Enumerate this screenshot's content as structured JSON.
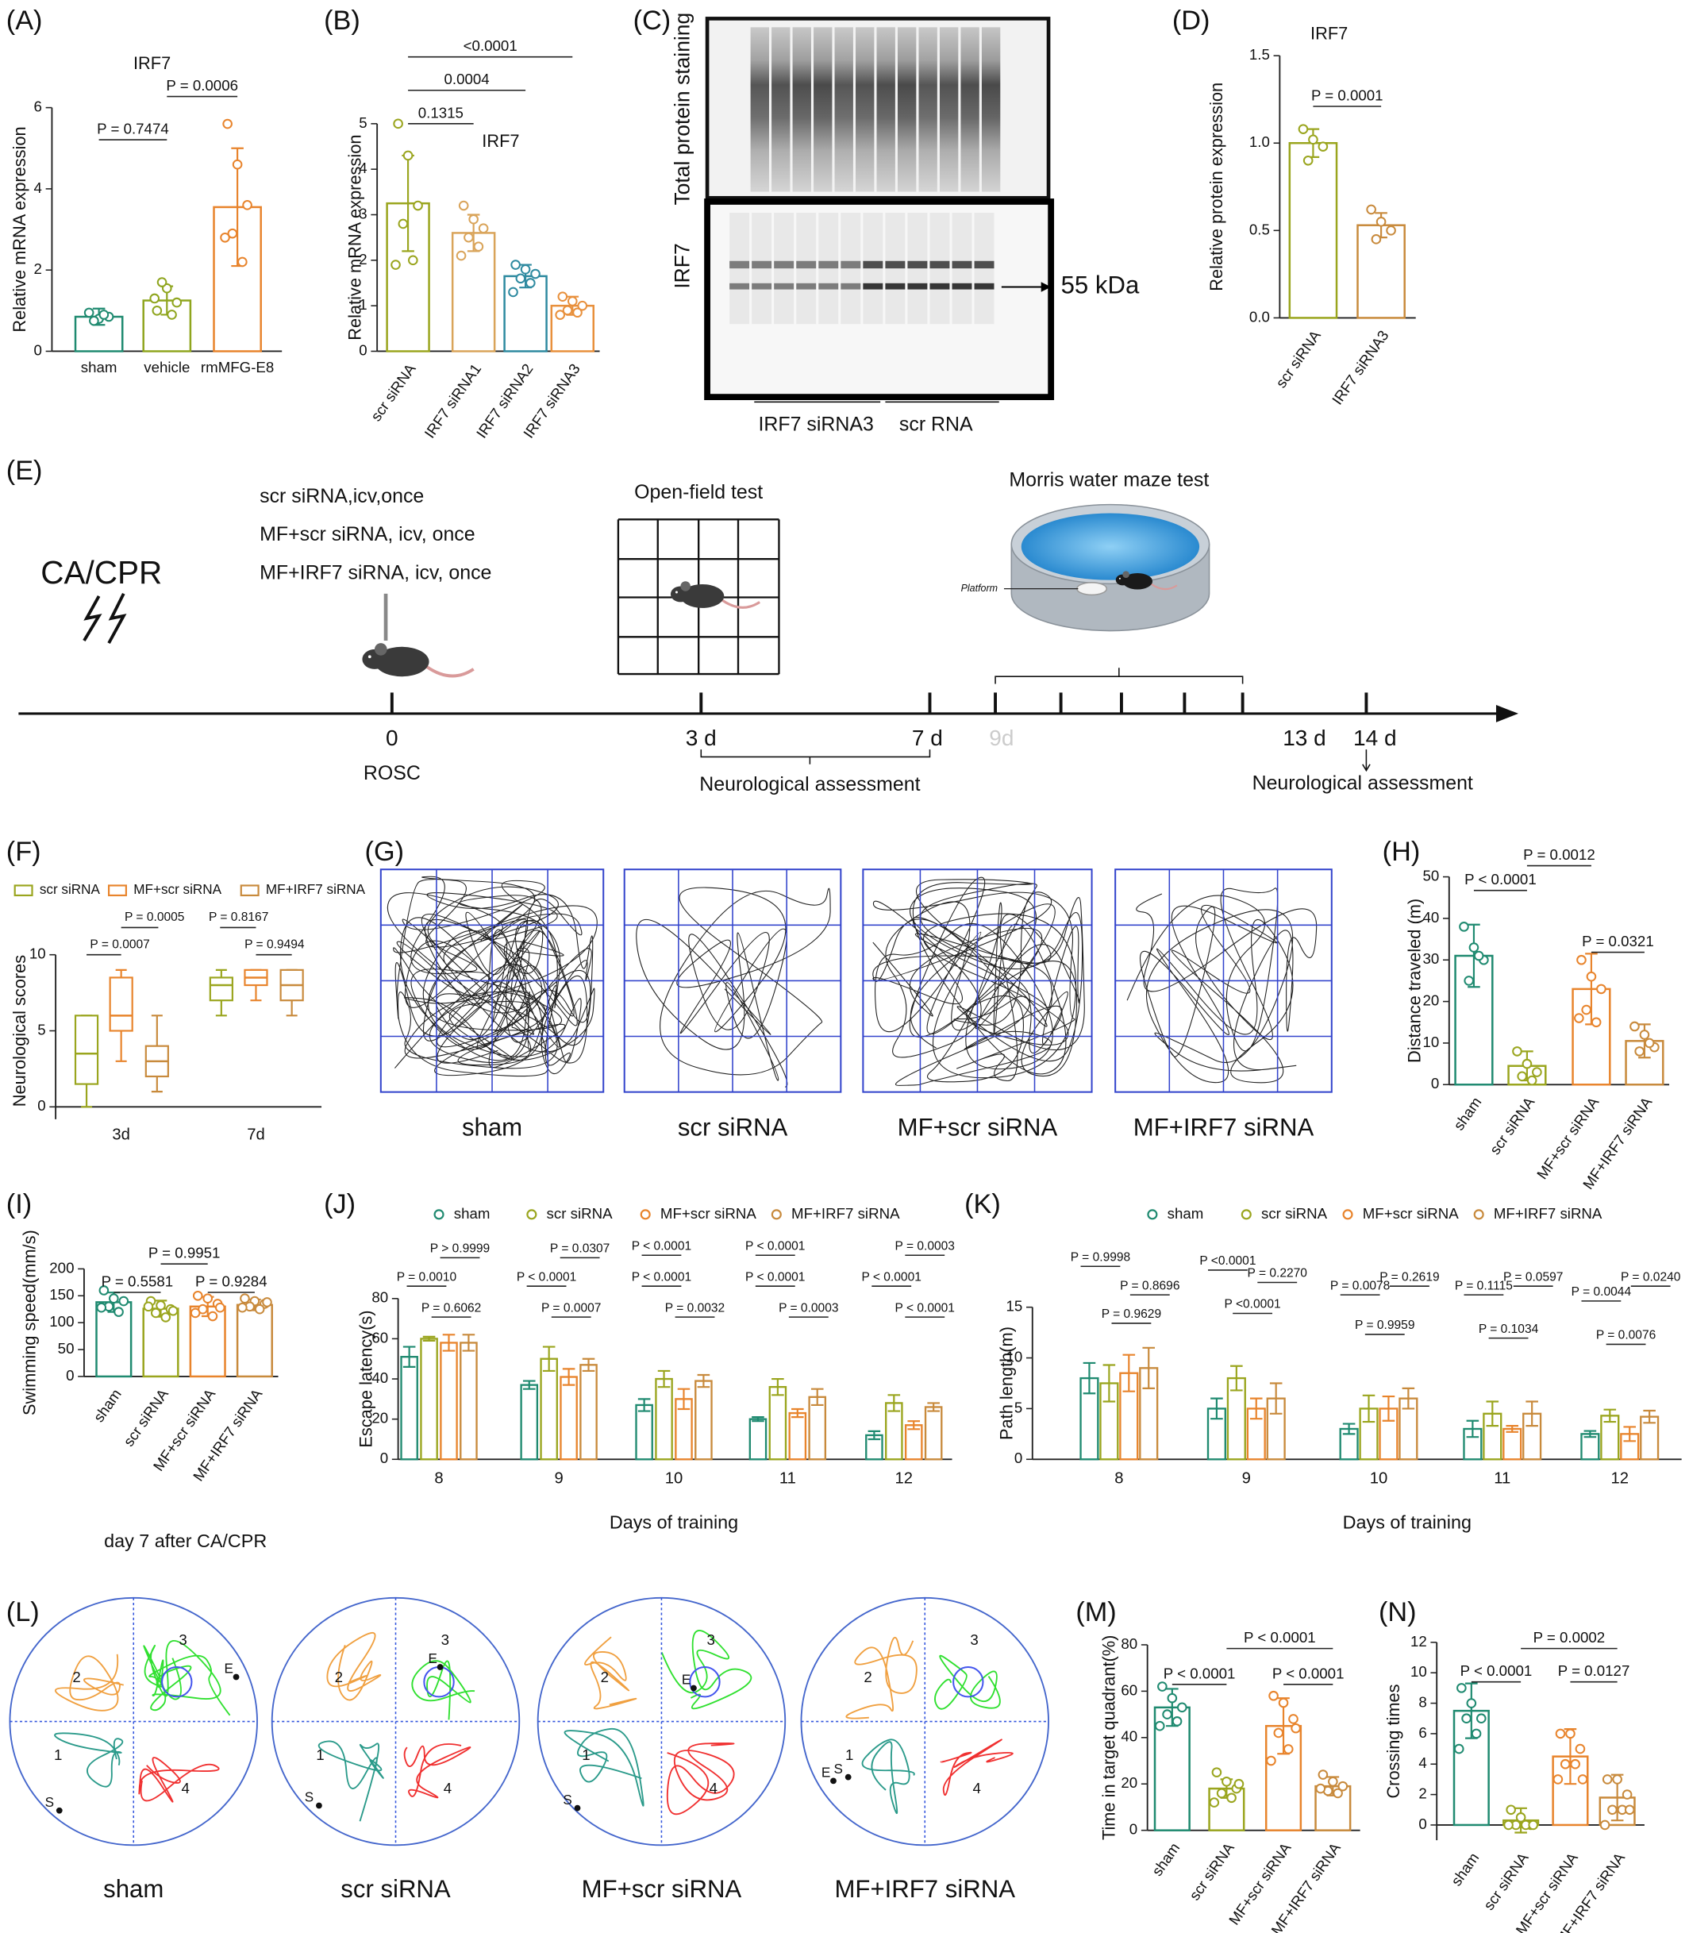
{
  "panels": [
    "(A)",
    "(B)",
    "(C)",
    "(D)",
    "(E)",
    "(F)",
    "(G)",
    "(H)",
    "(I)",
    "(J)",
    "(K)",
    "(L)",
    "(M)",
    "(N)"
  ],
  "chart_data": [
    {
      "type": "bar",
      "title": "IRF7",
      "ylabel": "Relative mRNA expression",
      "categories": [
        "sham",
        "vehicle",
        "rmMFG-E8"
      ],
      "values": [
        0.85,
        1.25,
        3.55
      ],
      "errors": [
        0.2,
        0.35,
        1.45
      ],
      "points": [
        [
          0.95,
          0.8,
          0.85,
          0.75,
          0.9
        ],
        [
          1.0,
          1.55,
          1.2,
          1.7,
          0.9,
          1.3
        ],
        [
          5.6,
          4.6,
          3.6,
          2.9,
          2.2,
          2.8
        ]
      ],
      "colors": [
        "#1f8a70",
        "#8fa51e",
        "#e8842c"
      ],
      "ylim": [
        0,
        6
      ],
      "yticks": [
        0,
        2,
        4,
        6
      ],
      "comparisons": [
        "P = 0.7474",
        "P = 0.0006"
      ]
    },
    {
      "type": "bar",
      "title": "IRF7",
      "ylabel": "Relative mRNA expression",
      "categories": [
        "scr siRNA",
        "IRF7 siRNA1",
        "IRF7 siRNA2",
        "IRF7 siRNA3"
      ],
      "values": [
        3.25,
        2.6,
        1.65,
        1.0
      ],
      "errors": [
        1.05,
        0.4,
        0.25,
        0.2
      ],
      "points": [
        [
          5.0,
          4.3,
          3.2,
          2.8,
          2.0,
          1.9
        ],
        [
          3.2,
          2.9,
          2.7,
          2.5,
          2.3,
          2.1
        ],
        [
          1.9,
          1.8,
          1.7,
          1.6,
          1.5,
          1.3
        ],
        [
          1.2,
          1.1,
          1.0,
          0.9,
          0.85,
          0.8
        ]
      ],
      "colors": [
        "#9aa51e",
        "#d9a45a",
        "#2e8aa0",
        "#e8903c"
      ],
      "ylim": [
        0,
        5
      ],
      "yticks": [
        0,
        1,
        2,
        3,
        4,
        5
      ],
      "comparisons": [
        "0.1315",
        "0.0004",
        "<0.0001"
      ]
    },
    {
      "type": "bar",
      "title": "IRF7",
      "ylabel": "Relative protein expression",
      "categories": [
        "scr siRNA",
        "IRF7 siRNA3"
      ],
      "values": [
        1.0,
        0.53
      ],
      "errors": [
        0.08,
        0.07
      ],
      "points": [
        [
          1.08,
          1.02,
          0.98,
          0.9
        ],
        [
          0.62,
          0.55,
          0.5,
          0.45
        ]
      ],
      "colors": [
        "#9aa51e",
        "#c88a3c"
      ],
      "ylim": [
        0,
        1.5
      ],
      "yticks": [
        {
          "value": 0,
          "label": "0.0"
        },
        {
          "value": 0.5,
          "label": "0.5"
        },
        {
          "value": 1,
          "label": "1.0"
        },
        {
          "value": 1.5,
          "label": "1.5"
        }
      ],
      "comparisons": [
        "P = 0.0001"
      ]
    },
    {
      "type": "box",
      "ylabel": "Neurological scores",
      "categories": [
        "3d",
        "7d"
      ],
      "series": [
        {
          "name": "scr siRNA",
          "color": "#9aa51e",
          "min": [
            0,
            6
          ],
          "q1": [
            1.5,
            7
          ],
          "median": [
            3.5,
            8
          ],
          "q3": [
            6,
            8.5
          ],
          "max": [
            6,
            9
          ]
        },
        {
          "name": "MF+scr siRNA",
          "color": "#e8842c",
          "min": [
            3,
            7
          ],
          "q1": [
            5,
            8
          ],
          "median": [
            6,
            8.5
          ],
          "q3": [
            8.5,
            9
          ],
          "max": [
            9,
            9
          ]
        },
        {
          "name": "MF+IRF7 siRNA",
          "color": "#c88a3c",
          "min": [
            1,
            6
          ],
          "q1": [
            2,
            7
          ],
          "median": [
            3,
            8
          ],
          "q3": [
            4,
            9
          ],
          "max": [
            6,
            9
          ]
        }
      ],
      "ylim": [
        0,
        10
      ],
      "yticks": [
        0,
        5,
        10
      ],
      "comparisons": [
        "P = 0.0007",
        "P = 0.0005",
        "P = 0.8167",
        "P = 0.9494"
      ]
    },
    {
      "type": "bar",
      "ylabel": "Distance traveled (m)",
      "categories": [
        "sham",
        "scr siRNA",
        "MF+scr siRNA",
        "MF+IRF7 siRNA"
      ],
      "values": [
        31,
        4.5,
        23,
        10.5
      ],
      "errors": [
        7.5,
        3.5,
        8.5,
        4
      ],
      "points": [
        [
          38,
          33,
          30,
          25,
          31
        ],
        [
          8,
          5,
          3,
          2,
          1
        ],
        [
          30,
          26,
          23,
          18,
          15,
          16
        ],
        [
          14,
          12,
          9,
          8,
          10
        ]
      ],
      "colors": [
        "#1f8a70",
        "#9aa51e",
        "#e8842c",
        "#c88a3c"
      ],
      "ylim": [
        0,
        50
      ],
      "yticks": [
        0,
        10,
        20,
        30,
        40,
        50
      ],
      "comparisons": [
        "P < 0.0001",
        "P = 0.0012",
        "P = 0.0321"
      ]
    },
    {
      "type": "bar",
      "ylabel": "Swimming speed(mm/s)",
      "xlabel": "day 7 after CA/CPR",
      "categories": [
        "sham",
        "scr siRNA",
        "MF+scr siRNA",
        "MF+IRF7 siRNA"
      ],
      "values": [
        138,
        126,
        130,
        133
      ],
      "errors": [
        18,
        15,
        18,
        10
      ],
      "points": [
        [
          160,
          145,
          140,
          130,
          120,
          128
        ],
        [
          140,
          132,
          125,
          118,
          110,
          130,
          122
        ],
        [
          150,
          145,
          135,
          125,
          112,
          118,
          128
        ],
        [
          145,
          140,
          135,
          130,
          125,
          128,
          138
        ]
      ],
      "colors": [
        "#1f8a70",
        "#9aa51e",
        "#e8842c",
        "#c88a3c"
      ],
      "ylim": [
        0,
        200
      ],
      "yticks": [
        0,
        50,
        100,
        150,
        200
      ],
      "comparisons": [
        "P = 0.5581",
        "P = 0.9951",
        "P = 0.9284"
      ]
    },
    {
      "type": "grouped_bar",
      "ylabel": "Escape latency(s)",
      "xlabel": "Days of training",
      "categories": [
        "8",
        "9",
        "10",
        "11",
        "12"
      ],
      "series": [
        {
          "name": "sham",
          "color": "#1f8a70",
          "values": [
            51,
            37,
            27,
            20,
            12
          ],
          "errors": [
            5,
            2,
            3,
            1,
            2
          ]
        },
        {
          "name": "scr siRNA",
          "color": "#9aa51e",
          "values": [
            60,
            50,
            40,
            36,
            28
          ],
          "errors": [
            1,
            6,
            4,
            4,
            4
          ]
        },
        {
          "name": "MF+scr siRNA",
          "color": "#e8842c",
          "values": [
            58,
            41,
            30,
            23,
            17
          ],
          "errors": [
            4,
            4,
            5,
            2,
            2
          ]
        },
        {
          "name": "MF+IRF7 siRNA",
          "color": "#c88a3c",
          "values": [
            58,
            47,
            39,
            31,
            26
          ],
          "errors": [
            4,
            3,
            3,
            4,
            2
          ]
        }
      ],
      "ylim": [
        0,
        80
      ],
      "yticks": [
        0,
        20,
        40,
        60,
        80
      ],
      "comparisons": [
        [
          "P = 0.0010",
          "P = 0.6062",
          "P > 0.9999"
        ],
        [
          "P < 0.0001",
          "P = 0.0007",
          "P = 0.0307"
        ],
        [
          "P < 0.0001",
          "P < 0.0001",
          "P = 0.0032"
        ],
        [
          "P < 0.0001",
          "P < 0.0001",
          "P = 0.0003"
        ],
        [
          "P < 0.0001",
          "P < 0.0001",
          "P = 0.0003"
        ]
      ]
    },
    {
      "type": "grouped_bar",
      "ylabel": "Path length(m)",
      "xlabel": "Days of training",
      "categories": [
        "8",
        "9",
        "10",
        "11",
        "12"
      ],
      "series": [
        {
          "name": "sham",
          "color": "#1f8a70",
          "values": [
            8,
            5,
            3,
            3,
            2.5
          ],
          "errors": [
            1.5,
            1,
            0.5,
            0.8,
            0.3
          ]
        },
        {
          "name": "scr siRNA",
          "color": "#9aa51e",
          "values": [
            7.5,
            8,
            5,
            4.5,
            4.3
          ],
          "errors": [
            1.8,
            1.2,
            1.3,
            1.2,
            0.6
          ]
        },
        {
          "name": "MF+scr siRNA",
          "color": "#e8842c",
          "values": [
            8.5,
            5,
            5,
            3,
            2.5
          ],
          "errors": [
            1.8,
            1,
            1.2,
            0.3,
            0.7
          ]
        },
        {
          "name": "MF+IRF7 siRNA",
          "color": "#c88a3c",
          "values": [
            9,
            6,
            6,
            4.5,
            4.2
          ],
          "errors": [
            2,
            1.5,
            1,
            1.2,
            0.6
          ]
        }
      ],
      "ylim": [
        0,
        15
      ],
      "yticks": [
        0,
        5,
        10,
        15
      ],
      "comparisons": [
        [
          "P = 0.9998",
          "P = 0.9629",
          "P = 0.8696"
        ],
        [
          "P <0.0001",
          "P <0.0001",
          "P = 0.2270"
        ],
        [
          "P = 0.0078",
          "P = 0.9959",
          "P = 0.2619"
        ],
        [
          "P = 0.1115",
          "P = 0.1034",
          "P = 0.0597"
        ],
        [
          "P = 0.0044",
          "P = 0.0076",
          "P = 0.0240"
        ]
      ]
    },
    {
      "type": "bar",
      "ylabel": "Time in target quadrant(%)",
      "categories": [
        "sham",
        "scr siRNA",
        "MF+scr siRNA",
        "MF+IRF7 siRNA"
      ],
      "values": [
        53,
        18,
        45,
        19
      ],
      "errors": [
        8,
        4,
        12,
        4
      ],
      "points": [
        [
          62,
          57,
          53,
          50,
          47,
          45
        ],
        [
          25,
          21,
          18,
          16,
          14,
          12,
          20
        ],
        [
          58,
          55,
          48,
          42,
          35,
          30,
          44
        ],
        [
          24,
          21,
          19,
          17,
          16,
          18
        ]
      ],
      "colors": [
        "#1f8a70",
        "#9aa51e",
        "#e8842c",
        "#c88a3c"
      ],
      "ylim": [
        0,
        80
      ],
      "yticks": [
        0,
        20,
        40,
        60,
        80
      ],
      "comparisons": [
        "P < 0.0001",
        "P < 0.0001",
        "P < 0.0001"
      ]
    },
    {
      "type": "bar",
      "ylabel": "Crossing times",
      "categories": [
        "sham",
        "scr siRNA",
        "MF+scr siRNA",
        "MF+IRF7 siRNA"
      ],
      "values": [
        7.5,
        0.3,
        4.5,
        1.8
      ],
      "errors": [
        1.8,
        0.8,
        1.8,
        1.5
      ],
      "points": [
        [
          9,
          8,
          7,
          7,
          6,
          5
        ],
        [
          1,
          0.5,
          0,
          0,
          0,
          0,
          0
        ],
        [
          6,
          6,
          5,
          4,
          4,
          3,
          3
        ],
        [
          3,
          3,
          2,
          1,
          1,
          0,
          1
        ]
      ],
      "colors": [
        "#1f8a70",
        "#9aa51e",
        "#e8842c",
        "#c88a3c"
      ],
      "ylim": [
        -1,
        12
      ],
      "yticks": [
        0,
        2,
        4,
        6,
        8,
        10,
        12
      ],
      "comparisons": [
        "P < 0.0001",
        "P = 0.0127",
        "P = 0.0002"
      ]
    }
  ],
  "blot": {
    "top_label": "Total protein staining",
    "bottom_label": "IRF7",
    "marker": "55 kDa",
    "groups": [
      "IRF7 siRNA3",
      "scr RNA"
    ]
  },
  "timeline": {
    "event": "CA/CPR",
    "treatments": [
      "scr siRNA,icv,once",
      "MF+scr siRNA, icv, once",
      "MF+IRF7 siRNA, icv, once"
    ],
    "open_field": "Open-field test",
    "water_maze": "Morris water maze test",
    "platform": "Platform",
    "days": [
      "0",
      "3 d",
      "7 d",
      "9d",
      "13 d",
      "14 d"
    ],
    "rosc": "ROSC",
    "assessment": [
      "Neurological assessment",
      "Neurological assessment"
    ]
  },
  "open_field": {
    "labels": [
      "sham",
      "scr siRNA",
      "MF+scr siRNA",
      "MF+IRF7 siRNA"
    ]
  },
  "water_maze": {
    "quadrants": [
      "1",
      "2",
      "3",
      "4"
    ],
    "start": "S",
    "end": "E",
    "labels": [
      "sham",
      "scr siRNA",
      "MF+scr siRNA",
      "MF+IRF7 siRNA"
    ]
  }
}
